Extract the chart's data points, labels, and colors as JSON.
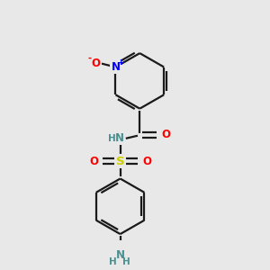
{
  "bg_color": "#e8e8e8",
  "bond_color": "#1a1a1a",
  "bond_width": 1.6,
  "colors": {
    "N_plus": "#0000ff",
    "O_minus": "#ff0000",
    "S": "#cccc00",
    "O": "#ff0000",
    "N": "#4a9090",
    "H": "#4a9090"
  },
  "font_size_atom": 8.5,
  "font_size_charge": 6,
  "font_size_H": 7.5
}
